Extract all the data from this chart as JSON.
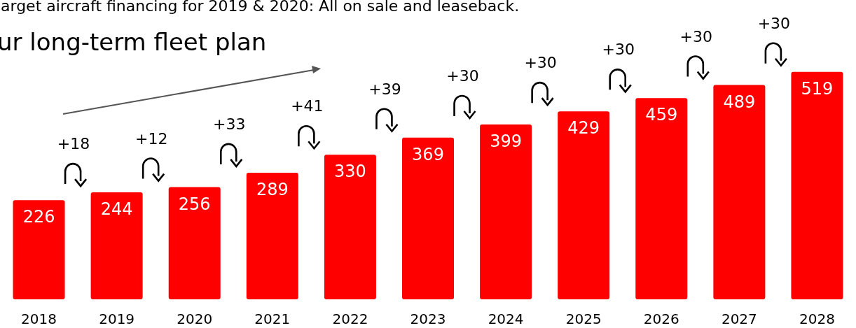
{
  "chart_data": {
    "type": "bar",
    "title": "arget aircraft financing for 2019 & 2020: All on sale and leaseback.",
    "subtitle": "ur long-term fleet plan",
    "categories": [
      "2018",
      "2019",
      "2020",
      "2021",
      "2022",
      "2023",
      "2024",
      "2025",
      "2026",
      "2027",
      "2028"
    ],
    "values": [
      226,
      244,
      256,
      289,
      330,
      369,
      399,
      429,
      459,
      489,
      519
    ],
    "color": "#ff0000",
    "data_labels": true,
    "annotations": [
      "+18",
      "+12",
      "+33",
      "+41",
      "+39",
      "+30",
      "+30",
      "+30",
      "+30",
      "+30"
    ]
  }
}
